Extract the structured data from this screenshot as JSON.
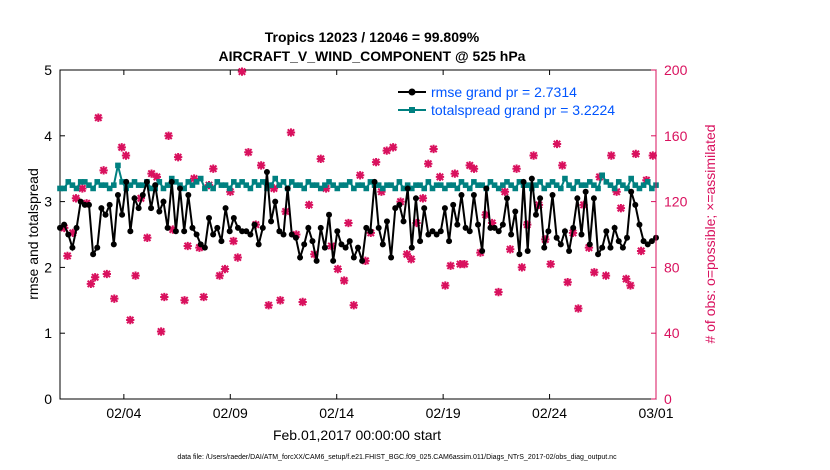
{
  "chart_data": {
    "type": "line",
    "title": "Tropics 12023 / 12046 = 99.809%",
    "subtitle": "AIRCRAFT_V_WIND_COMPONENT @ 525 hPa",
    "xlabel": "Feb.01,2017 00:00:00 start",
    "ylabel_left": "rmse and totalspread",
    "ylabel_right": "# of obs: o=possible; ×=assimilated",
    "footer": "data file: /Users/raeder/DAI/ATM_forcXX/CAM6_setup/f.e21.FHIST_BGC.f09_025.CAM6assim.011/Diags_NTrS_2017-02/obs_diag_output.nc",
    "xlim": [
      1,
      29
    ],
    "ylim_left": [
      0,
      5
    ],
    "ylim_right": [
      0,
      200
    ],
    "x_ticks": [
      {
        "x": 4,
        "label": "02/04"
      },
      {
        "x": 9,
        "label": "02/09"
      },
      {
        "x": 14,
        "label": "02/14"
      },
      {
        "x": 19,
        "label": "02/19"
      },
      {
        "x": 24,
        "label": "02/24"
      },
      {
        "x": 29,
        "label": "03/01"
      }
    ],
    "y_ticks_left": [
      "0",
      "1",
      "2",
      "3",
      "4",
      "5"
    ],
    "y_ticks_right": [
      "0",
      "40",
      "80",
      "120",
      "160",
      "200"
    ],
    "legend_placement": "top-right",
    "colors": {
      "rmse": "#000000",
      "spread": "#008080",
      "obs": "#d9115e",
      "legend_text": "#0055ff"
    },
    "series": [
      {
        "name": "rmse grand pr = 2.7314",
        "axis": "left",
        "values": [
          2.6,
          2.65,
          2.5,
          2.3,
          2.6,
          3.0,
          2.95,
          2.95,
          2.2,
          2.3,
          2.9,
          2.8,
          2.95,
          2.35,
          3.1,
          2.8,
          3.3,
          2.55,
          3.05,
          2.9,
          3.1,
          3.3,
          2.9,
          3.25,
          2.85,
          3.0,
          2.6,
          3.3,
          2.55,
          3.2,
          2.55,
          3.1,
          2.6,
          2.5,
          2.35,
          2.3,
          2.75,
          2.5,
          2.6,
          2.4,
          2.9,
          2.55,
          2.75,
          2.6,
          2.55,
          2.55,
          2.5,
          2.65,
          2.35,
          2.6,
          3.45,
          2.7,
          3.0,
          2.55,
          2.5,
          3.2,
          2.5,
          2.45,
          2.15,
          2.35,
          2.6,
          2.4,
          2.1,
          2.6,
          2.3,
          2.8,
          2.1,
          2.55,
          2.35,
          2.3,
          2.4,
          2.15,
          2.3,
          2.1,
          2.6,
          2.55,
          3.3,
          2.6,
          2.35,
          2.7,
          2.15,
          2.9,
          2.95,
          2.7,
          3.2,
          2.3,
          3.05,
          2.4,
          2.9,
          2.5,
          2.55,
          2.5,
          2.55,
          2.9,
          2.4,
          2.95,
          2.65,
          3.1,
          2.6,
          2.55,
          3.1,
          2.65,
          2.25,
          3.2,
          2.6,
          2.6,
          2.55,
          2.65,
          3.05,
          2.5,
          2.85,
          2.2,
          3.3,
          2.25,
          3.35,
          2.8,
          3.05,
          2.3,
          2.55,
          3.1,
          2.45,
          2.35,
          2.55,
          2.25,
          2.6,
          3.05,
          2.5,
          3.15,
          2.35,
          3.05,
          2.2,
          2.3,
          2.55,
          2.3,
          2.6,
          2.4,
          2.3,
          2.45,
          3.15,
          2.95,
          2.65,
          2.4,
          2.35,
          2.4,
          2.45
        ],
        "marker": "o"
      },
      {
        "name": "totalspread grand pr = 3.2224",
        "axis": "left",
        "values": [
          3.2,
          3.2,
          3.3,
          3.25,
          3.2,
          3.3,
          3.3,
          3.25,
          3.2,
          3.3,
          3.25,
          3.25,
          3.2,
          3.25,
          3.55,
          3.3,
          3.2,
          3.25,
          3.3,
          3.25,
          3.25,
          3.3,
          3.2,
          3.2,
          3.3,
          3.2,
          3.25,
          3.35,
          3.3,
          3.25,
          3.2,
          3.3,
          3.25,
          3.3,
          3.35,
          3.2,
          3.25,
          3.2,
          3.3,
          3.25,
          3.25,
          3.2,
          3.3,
          3.25,
          3.3,
          3.25,
          3.2,
          3.3,
          3.25,
          3.3,
          3.2,
          3.25,
          3.35,
          3.25,
          3.3,
          3.2,
          3.3,
          3.25,
          3.25,
          3.2,
          3.3,
          3.25,
          3.25,
          3.2,
          3.25,
          3.3,
          3.25,
          3.2,
          3.25,
          3.25,
          3.3,
          3.2,
          3.25,
          3.25,
          3.2,
          3.3,
          3.25,
          3.25,
          3.2,
          3.25,
          3.25,
          3.2,
          3.3,
          3.2,
          3.25,
          3.2,
          3.25,
          3.25,
          3.2,
          3.3,
          3.2,
          3.25,
          3.25,
          3.2,
          3.25,
          3.25,
          3.2,
          3.3,
          3.25,
          3.2,
          3.3,
          3.25,
          3.25,
          3.2,
          3.3,
          3.25,
          3.2,
          3.25,
          3.3,
          3.25,
          3.2,
          3.3,
          3.25,
          3.25,
          3.2,
          3.25,
          3.3,
          3.2,
          3.25,
          3.3,
          3.25,
          3.2,
          3.35,
          3.25,
          3.2,
          3.3,
          3.25,
          3.25,
          3.3,
          3.25,
          3.2,
          3.4,
          3.3,
          3.25,
          3.2,
          3.3,
          3.25,
          3.2,
          3.35,
          3.25,
          3.2,
          3.25,
          3.3,
          3.2,
          3.25
        ],
        "marker": "s"
      }
    ],
    "obs_points": [
      [
        1.2,
        104
      ],
      [
        1.35,
        87
      ],
      [
        1.6,
        101
      ],
      [
        1.75,
        122
      ],
      [
        2.05,
        128
      ],
      [
        2.25,
        119
      ],
      [
        2.45,
        70
      ],
      [
        2.65,
        74
      ],
      [
        2.8,
        171
      ],
      [
        3.05,
        139
      ],
      [
        3.2,
        76
      ],
      [
        3.55,
        61
      ],
      [
        3.9,
        153
      ],
      [
        4.1,
        148
      ],
      [
        4.3,
        48
      ],
      [
        4.55,
        75
      ],
      [
        4.8,
        122
      ],
      [
        5.1,
        98
      ],
      [
        5.3,
        137
      ],
      [
        5.55,
        135
      ],
      [
        5.75,
        41
      ],
      [
        5.9,
        62
      ],
      [
        6.1,
        160
      ],
      [
        6.3,
        103
      ],
      [
        6.55,
        147
      ],
      [
        6.85,
        60
      ],
      [
        7.0,
        93
      ],
      [
        7.3,
        134
      ],
      [
        7.55,
        92
      ],
      [
        7.75,
        62
      ],
      [
        8.0,
        130
      ],
      [
        8.2,
        140
      ],
      [
        8.5,
        75
      ],
      [
        8.75,
        79
      ],
      [
        9.0,
        126
      ],
      [
        9.15,
        96
      ],
      [
        9.35,
        86
      ],
      [
        9.55,
        199
      ],
      [
        9.85,
        150
      ],
      [
        10.2,
        106
      ],
      [
        10.45,
        142
      ],
      [
        10.8,
        57
      ],
      [
        11.05,
        128
      ],
      [
        11.35,
        60
      ],
      [
        11.6,
        114
      ],
      [
        11.85,
        162
      ],
      [
        12.1,
        100
      ],
      [
        12.4,
        59
      ],
      [
        12.7,
        118
      ],
      [
        12.95,
        88
      ],
      [
        13.25,
        146
      ],
      [
        13.5,
        128
      ],
      [
        13.75,
        93
      ],
      [
        14.05,
        79
      ],
      [
        14.35,
        72
      ],
      [
        14.55,
        107
      ],
      [
        14.8,
        57
      ],
      [
        15.1,
        136
      ],
      [
        15.35,
        84
      ],
      [
        15.6,
        101
      ],
      [
        15.85,
        144
      ],
      [
        16.1,
        126
      ],
      [
        16.35,
        151
      ],
      [
        16.65,
        153
      ],
      [
        17.0,
        120
      ],
      [
        17.3,
        88
      ],
      [
        17.5,
        85
      ],
      [
        17.75,
        107
      ],
      [
        18.05,
        122
      ],
      [
        18.3,
        143
      ],
      [
        18.55,
        152
      ],
      [
        18.85,
        135
      ],
      [
        19.1,
        69
      ],
      [
        19.35,
        81
      ],
      [
        19.55,
        137
      ],
      [
        19.8,
        82
      ],
      [
        20.0,
        82
      ],
      [
        20.25,
        142
      ],
      [
        20.45,
        140
      ],
      [
        20.75,
        89
      ],
      [
        21.0,
        112
      ],
      [
        21.3,
        107
      ],
      [
        21.6,
        65
      ],
      [
        21.9,
        126
      ],
      [
        22.15,
        91
      ],
      [
        22.45,
        140
      ],
      [
        22.7,
        80
      ],
      [
        22.95,
        106
      ],
      [
        23.25,
        148
      ],
      [
        23.5,
        118
      ],
      [
        23.8,
        97
      ],
      [
        24.05,
        82
      ],
      [
        24.35,
        155
      ],
      [
        24.6,
        142
      ],
      [
        24.85,
        71
      ],
      [
        25.1,
        101
      ],
      [
        25.35,
        55
      ],
      [
        25.6,
        118
      ],
      [
        25.85,
        92
      ],
      [
        26.1,
        77
      ],
      [
        26.35,
        135
      ],
      [
        26.65,
        75
      ],
      [
        26.9,
        148
      ],
      [
        27.15,
        126
      ],
      [
        27.35,
        116
      ],
      [
        27.6,
        73
      ],
      [
        27.8,
        69
      ],
      [
        28.05,
        149
      ],
      [
        28.3,
        90
      ],
      [
        28.55,
        133
      ],
      [
        28.85,
        148
      ]
    ]
  }
}
